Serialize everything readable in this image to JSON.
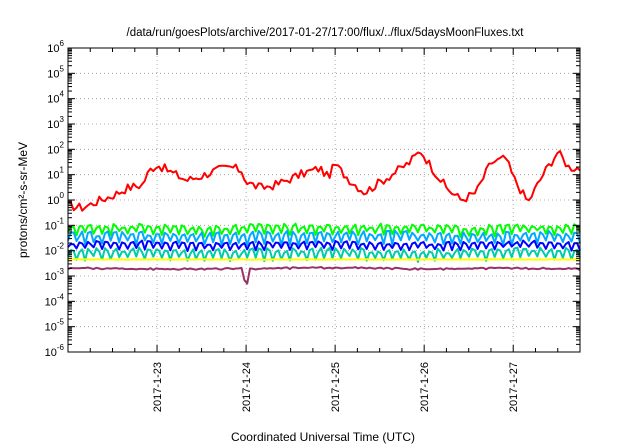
{
  "chart_data": {
    "type": "line",
    "title": "/data/run/goesPlots/archive/2017-01-27/17:00/flux/../flux/5daysMoonFluxes.txt",
    "xlabel": "Coordinated Universal Time (UTC)",
    "ylabel": "protons/cm²-s-sr-MeV",
    "yscale": "log",
    "ylim": [
      1e-06,
      1000000.0
    ],
    "xlim": [
      "2017-01-22T00:00",
      "2017-01-27T18:00"
    ],
    "grid": "dotted",
    "legend": "none",
    "y_ticks": [
      {
        "base": "10",
        "exp": "-6"
      },
      {
        "base": "10",
        "exp": "-5"
      },
      {
        "base": "10",
        "exp": "-4"
      },
      {
        "base": "10",
        "exp": "-3"
      },
      {
        "base": "10",
        "exp": "-2"
      },
      {
        "base": "10",
        "exp": "-1"
      },
      {
        "base": "10",
        "exp": "0"
      },
      {
        "base": "10",
        "exp": "1"
      },
      {
        "base": "10",
        "exp": "2"
      },
      {
        "base": "10",
        "exp": "3"
      },
      {
        "base": "10",
        "exp": "4"
      },
      {
        "base": "10",
        "exp": "5"
      },
      {
        "base": "10",
        "exp": "6"
      }
    ],
    "x_ticks": [
      "2017-1-23",
      "2017-1-24",
      "2017-1-25",
      "2017-1-26",
      "2017-1-27"
    ],
    "series": [
      {
        "color": "#ff0000",
        "points": [
          [
            "2017-01-22T00:00",
            0.6
          ],
          [
            "2017-01-22T04:00",
            0.5
          ],
          [
            "2017-01-22T08:00",
            0.9
          ],
          [
            "2017-01-22T12:00",
            1.5
          ],
          [
            "2017-01-22T16:00",
            3
          ],
          [
            "2017-01-22T20:00",
            4
          ],
          [
            "2017-01-22T22:00",
            15
          ],
          [
            "2017-01-23T00:00",
            25
          ],
          [
            "2017-01-23T04:00",
            12
          ],
          [
            "2017-01-23T08:00",
            6
          ],
          [
            "2017-01-23T12:00",
            9
          ],
          [
            "2017-01-23T16:00",
            15
          ],
          [
            "2017-01-23T20:00",
            20
          ],
          [
            "2017-01-23T23:00",
            14
          ],
          [
            "2017-01-24T00:00",
            5
          ],
          [
            "2017-01-24T04:00",
            3
          ],
          [
            "2017-01-24T08:00",
            4
          ],
          [
            "2017-01-24T12:00",
            7
          ],
          [
            "2017-01-24T16:00",
            12
          ],
          [
            "2017-01-24T20:00",
            18
          ],
          [
            "2017-01-24T22:00",
            8
          ],
          [
            "2017-01-25T00:00",
            25
          ],
          [
            "2017-01-25T04:00",
            6
          ],
          [
            "2017-01-25T08:00",
            2
          ],
          [
            "2017-01-25T12:00",
            5
          ],
          [
            "2017-01-25T16:00",
            12
          ],
          [
            "2017-01-25T20:00",
            30
          ],
          [
            "2017-01-25T23:00",
            90
          ],
          [
            "2017-01-26T02:00",
            20
          ],
          [
            "2017-01-26T06:00",
            3
          ],
          [
            "2017-01-26T10:00",
            1
          ],
          [
            "2017-01-26T14:00",
            2
          ],
          [
            "2017-01-26T18:00",
            30
          ],
          [
            "2017-01-26T22:00",
            45
          ],
          [
            "2017-01-27T00:00",
            8
          ],
          [
            "2017-01-27T04:00",
            0.8
          ],
          [
            "2017-01-27T08:00",
            10
          ],
          [
            "2017-01-27T12:00",
            80
          ],
          [
            "2017-01-27T15:00",
            20
          ],
          [
            "2017-01-27T18:00",
            18
          ]
        ]
      },
      {
        "color": "#00ff00",
        "points": [
          [
            "2017-01-22T00:00",
            0.09
          ],
          [
            "2017-01-22T18:00",
            0.1
          ],
          [
            "2017-01-23T12:00",
            0.08
          ],
          [
            "2017-01-24T06:00",
            0.1
          ],
          [
            "2017-01-25T00:00",
            0.09
          ],
          [
            "2017-01-25T18:00",
            0.1
          ],
          [
            "2017-01-26T12:00",
            0.08
          ],
          [
            "2017-01-27T06:00",
            0.1
          ],
          [
            "2017-01-27T18:00",
            0.09
          ]
        ]
      },
      {
        "color": "#00aaff",
        "points": [
          [
            "2017-01-22T00:00",
            0.045
          ],
          [
            "2017-01-22T18:00",
            0.05
          ],
          [
            "2017-01-23T12:00",
            0.04
          ],
          [
            "2017-01-24T06:00",
            0.05
          ],
          [
            "2017-01-25T00:00",
            0.045
          ],
          [
            "2017-01-25T18:00",
            0.05
          ],
          [
            "2017-01-26T12:00",
            0.04
          ],
          [
            "2017-01-27T06:00",
            0.05
          ],
          [
            "2017-01-27T18:00",
            0.045
          ]
        ]
      },
      {
        "color": "#0000ff",
        "points": [
          [
            "2017-01-22T00:00",
            0.02
          ],
          [
            "2017-01-22T18:00",
            0.022
          ],
          [
            "2017-01-23T12:00",
            0.018
          ],
          [
            "2017-01-24T06:00",
            0.02
          ],
          [
            "2017-01-25T00:00",
            0.021
          ],
          [
            "2017-01-25T18:00",
            0.019
          ],
          [
            "2017-01-26T12:00",
            0.02
          ],
          [
            "2017-01-27T06:00",
            0.022
          ],
          [
            "2017-01-27T18:00",
            0.019
          ]
        ]
      },
      {
        "color": "#00ccaa",
        "points": [
          [
            "2017-01-22T00:00",
            0.01
          ],
          [
            "2017-01-22T18:00",
            0.011
          ],
          [
            "2017-01-23T12:00",
            0.009
          ],
          [
            "2017-01-24T06:00",
            0.01
          ],
          [
            "2017-01-25T00:00",
            0.011
          ],
          [
            "2017-01-25T18:00",
            0.009
          ],
          [
            "2017-01-26T12:00",
            0.01
          ],
          [
            "2017-01-27T06:00",
            0.011
          ],
          [
            "2017-01-27T18:00",
            0.01
          ]
        ]
      },
      {
        "color": "#ffff00",
        "points": [
          [
            "2017-01-22T00:00",
            0.0045
          ],
          [
            "2017-01-27T18:00",
            0.0045
          ]
        ]
      },
      {
        "color": "#993366",
        "points": [
          [
            "2017-01-22T00:00",
            0.0021
          ],
          [
            "2017-01-23T00:00",
            0.0019
          ],
          [
            "2017-01-23T23:00",
            0.002
          ],
          [
            "2017-01-24T00:00",
            0.0003
          ],
          [
            "2017-01-24T01:00",
            0.002
          ],
          [
            "2017-01-25T00:00",
            0.0022
          ],
          [
            "2017-01-26T00:00",
            0.0019
          ],
          [
            "2017-01-27T00:00",
            0.0021
          ],
          [
            "2017-01-27T18:00",
            0.0019
          ]
        ]
      }
    ]
  }
}
